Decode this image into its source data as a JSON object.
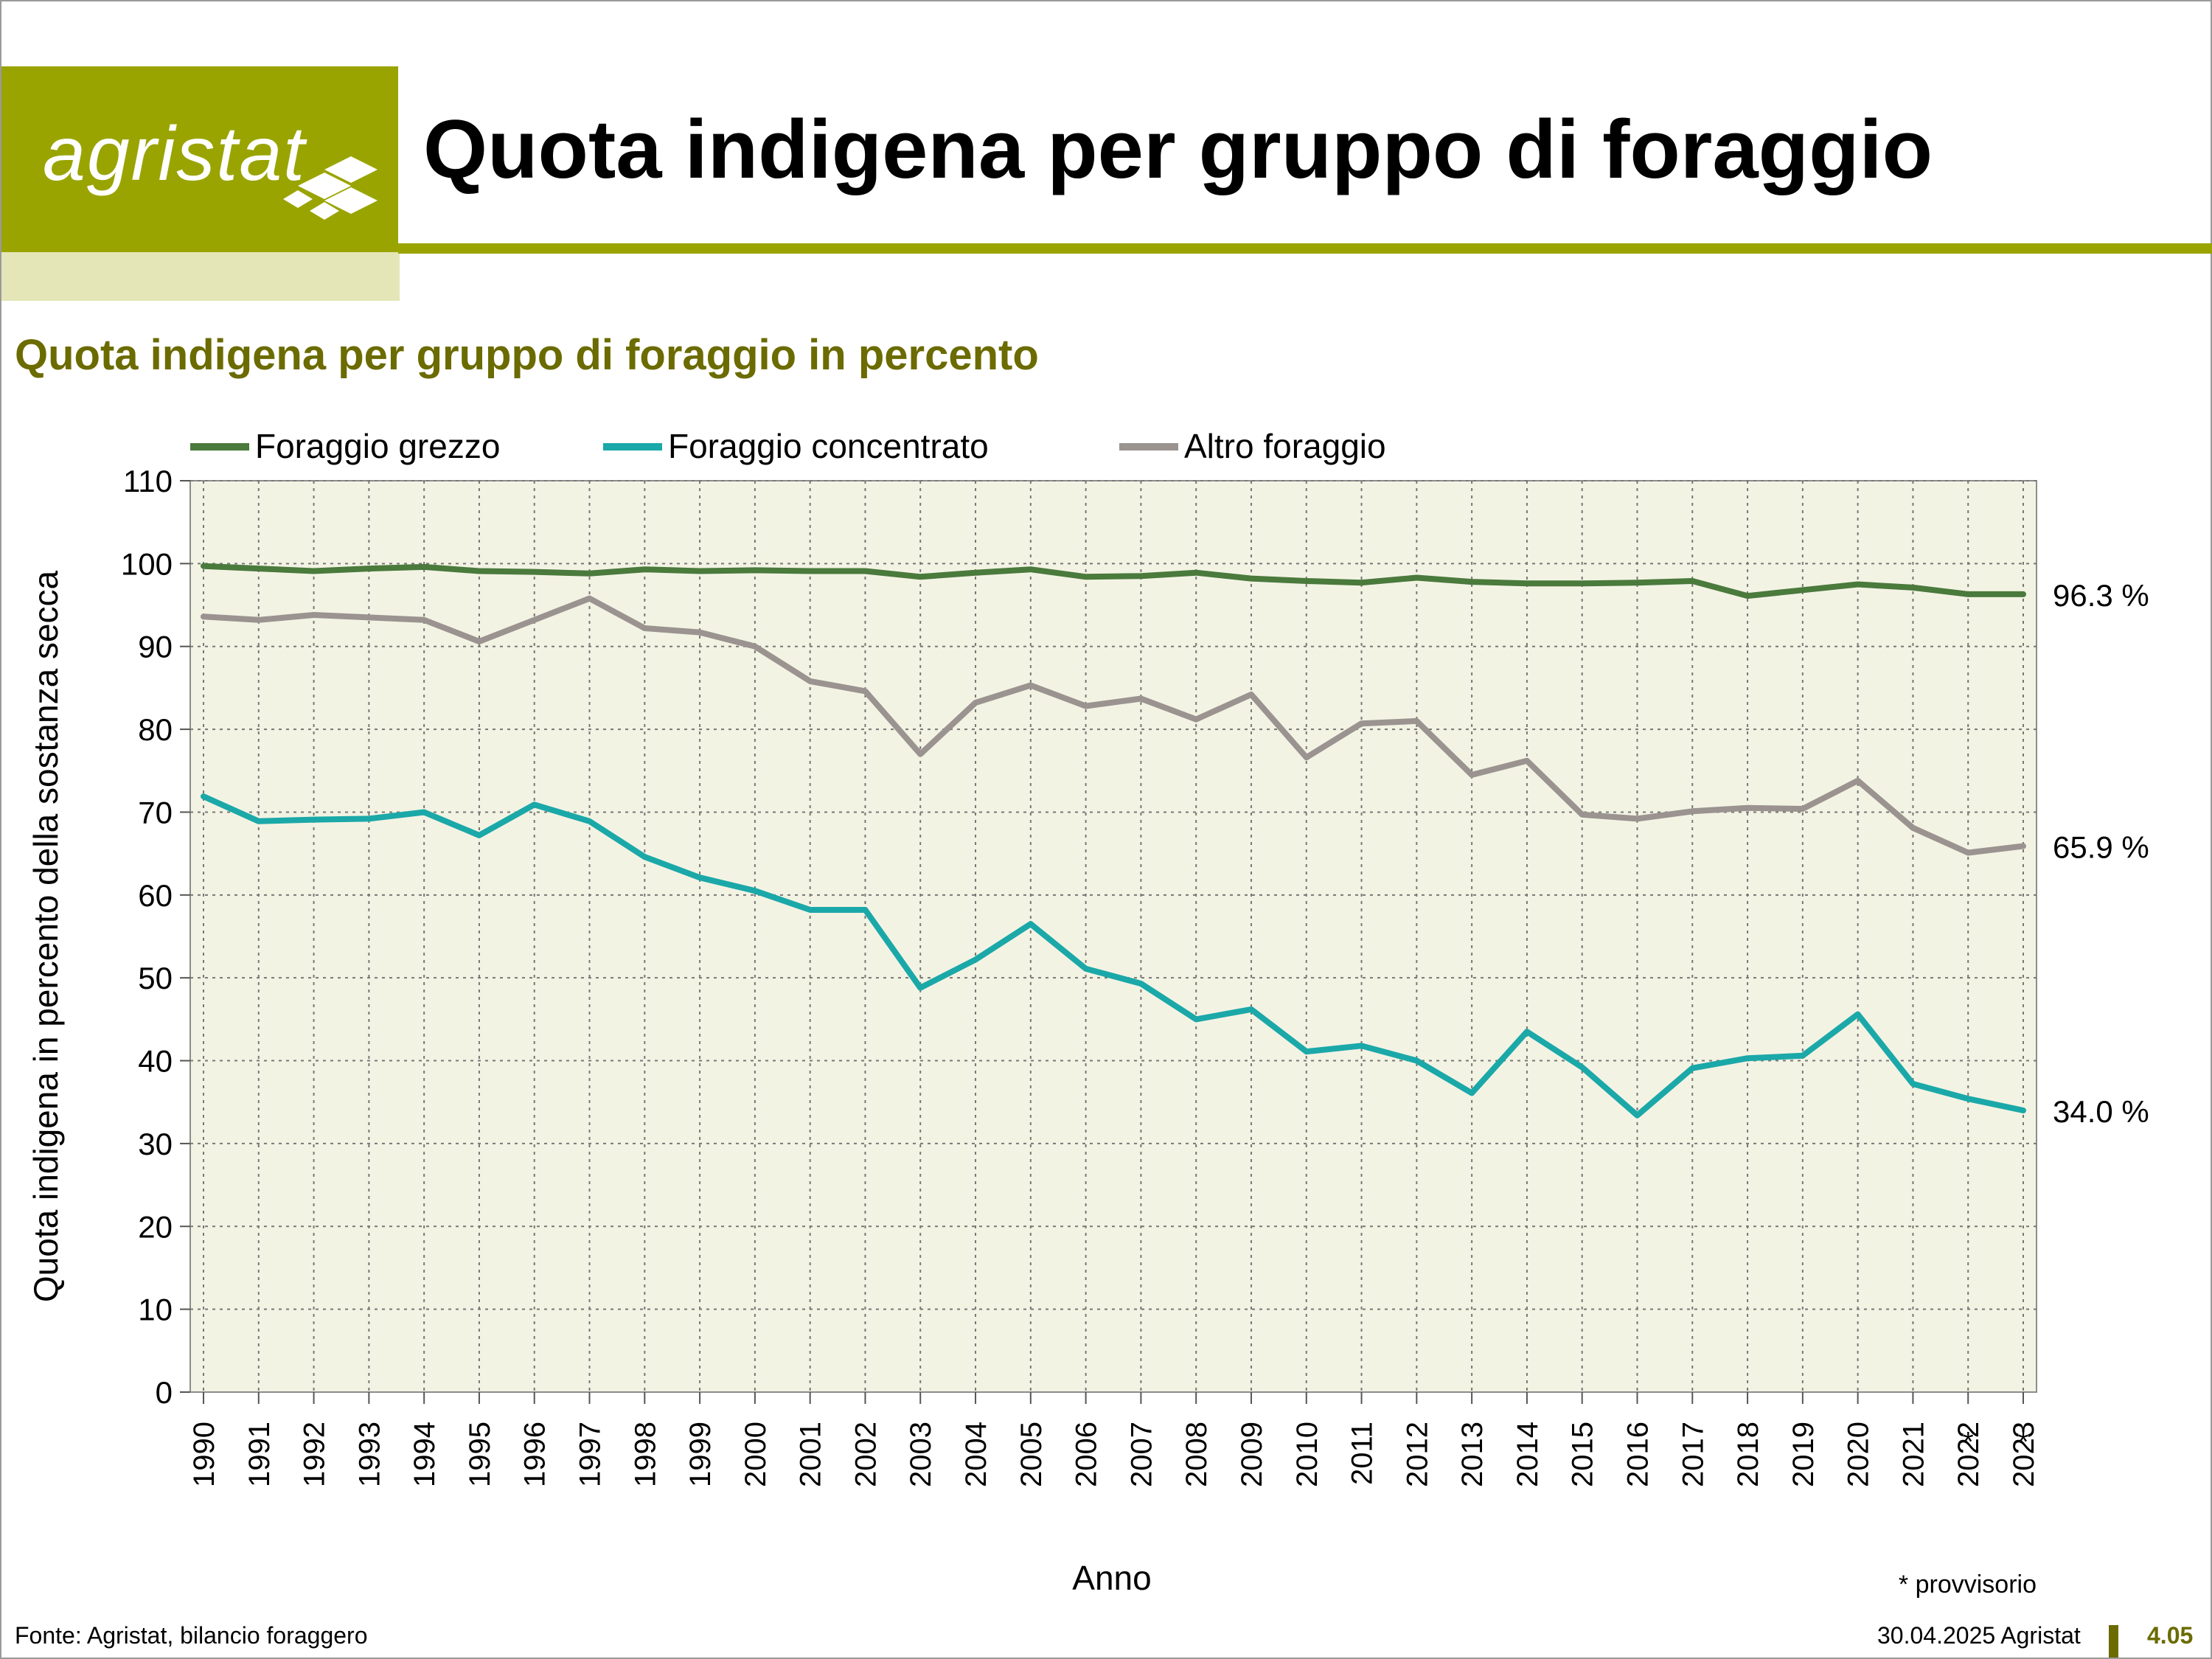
{
  "header": {
    "logo_text": "agristat",
    "title": "Quota indigena per gruppo di foraggio",
    "subtitle": "Quota indigena per gruppo di foraggio in percento"
  },
  "footer": {
    "source": "Fonte: Agristat, bilancio foraggero",
    "date": "30.04.2025 Agristat",
    "page": "4.05"
  },
  "chart_data": {
    "type": "line",
    "title": "Quota indigena per gruppo di foraggio in percento",
    "xlabel": "Anno",
    "ylabel": "Quota indigena in percento della sostanza secca",
    "ylim": [
      0,
      110
    ],
    "yticks": [
      0,
      10,
      20,
      30,
      40,
      50,
      60,
      70,
      80,
      90,
      100,
      110
    ],
    "grid": true,
    "legend": "top",
    "note": "* provvisorio",
    "x": [
      "1990",
      "1991",
      "1992",
      "1993",
      "1994",
      "1995",
      "1996",
      "1997",
      "1998",
      "1999",
      "2000",
      "2001",
      "2002",
      "2003",
      "2004",
      "2005",
      "2006",
      "2007",
      "2008",
      "2009",
      "2010",
      "2011",
      "2012",
      "2013",
      "2014",
      "2015",
      "2016",
      "2017",
      "2018",
      "2019",
      "2020",
      "2021",
      "2022",
      "2023"
    ],
    "provisional_years": [
      "2022",
      "2023"
    ],
    "provisional_marker": "*",
    "series": [
      {
        "name": "Foraggio grezzo",
        "color": "#4a7a3c",
        "values": [
          99.7,
          99.4,
          99.1,
          99.4,
          99.6,
          99.1,
          99.0,
          98.8,
          99.3,
          99.1,
          99.2,
          99.1,
          99.1,
          98.4,
          98.9,
          99.3,
          98.4,
          98.5,
          98.9,
          98.2,
          97.9,
          97.7,
          98.3,
          97.8,
          97.6,
          97.6,
          97.7,
          97.9,
          96.1,
          96.8,
          97.5,
          97.1,
          96.3,
          96.3
        ],
        "end_label": "96.3 %"
      },
      {
        "name": "Foraggio concentrato",
        "color": "#1ba8a8",
        "values": [
          71.9,
          68.9,
          69.1,
          69.2,
          70.0,
          67.2,
          70.9,
          68.9,
          64.6,
          62.1,
          60.5,
          58.2,
          58.2,
          48.8,
          52.2,
          56.5,
          51.1,
          49.3,
          45.0,
          46.2,
          41.1,
          41.8,
          40.0,
          36.1,
          43.5,
          39.2,
          33.4,
          39.1,
          40.3,
          40.6,
          45.6,
          37.2,
          35.4,
          34.0
        ],
        "end_label": "34.0 %"
      },
      {
        "name": "Altro foraggio",
        "color": "#9a9390",
        "values": [
          93.6,
          93.2,
          93.8,
          93.5,
          93.2,
          90.6,
          93.2,
          95.8,
          92.2,
          91.7,
          90.0,
          85.8,
          84.6,
          77.0,
          83.2,
          85.3,
          82.8,
          83.7,
          81.2,
          84.2,
          76.6,
          80.7,
          81.0,
          74.5,
          76.2,
          69.7,
          69.2,
          70.1,
          70.5,
          70.4,
          73.8,
          68.1,
          65.1,
          65.9
        ],
        "end_label": "65.9 %"
      }
    ]
  }
}
